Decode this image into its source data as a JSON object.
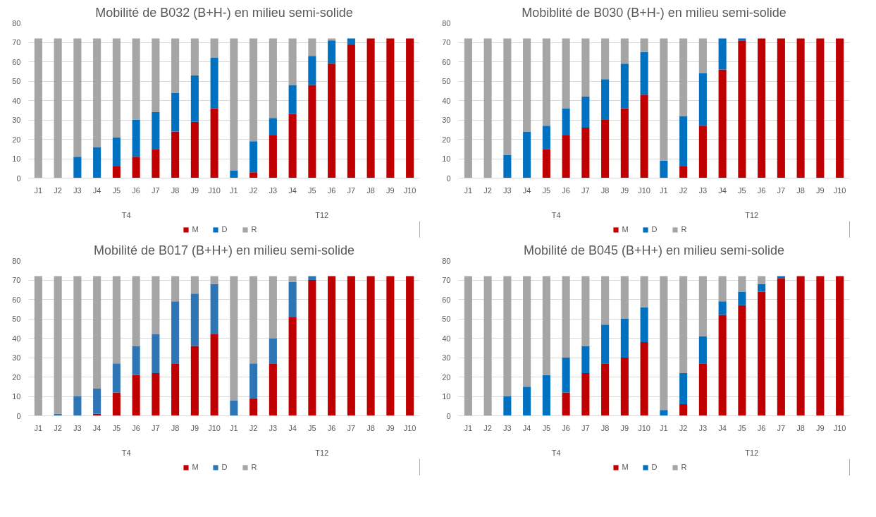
{
  "chart_data": [
    {
      "type": "bar",
      "title": "Mobilité de B032 (B+H-) en milieu semi-solide",
      "stacked": true,
      "categories": [
        "J1",
        "J2",
        "J3",
        "J4",
        "J5",
        "J6",
        "J7",
        "J8",
        "J9",
        "J10",
        "J1",
        "J2",
        "J3",
        "J4",
        "J5",
        "J6",
        "J7",
        "J8",
        "J9",
        "J10"
      ],
      "annotations": [
        "T4",
        "T12"
      ],
      "ylim": [
        0,
        80
      ],
      "yticks": [
        0,
        10,
        20,
        30,
        40,
        50,
        60,
        70,
        80
      ],
      "grid": "y",
      "legend": "bottom",
      "series": [
        {
          "name": "M",
          "color": "#c00000",
          "values": [
            0,
            0,
            0,
            0,
            6,
            11,
            15,
            24,
            29,
            36,
            0,
            3,
            22,
            33,
            48,
            59,
            69,
            72,
            72,
            72
          ]
        },
        {
          "name": "D",
          "color": "#0070c0",
          "values": [
            0,
            0,
            11,
            16,
            15,
            19,
            19,
            20,
            24,
            26,
            4,
            16,
            9,
            15,
            15,
            12,
            3,
            0,
            0,
            0
          ]
        },
        {
          "name": "R",
          "color": "#a5a5a5",
          "values": [
            72,
            72,
            61,
            56,
            51,
            42,
            38,
            28,
            19,
            10,
            68,
            53,
            41,
            24,
            9,
            1,
            0,
            0,
            0,
            0
          ]
        }
      ]
    },
    {
      "type": "bar",
      "title": "Mobiblité de B030 (B+H-) en milieu semi-solide",
      "stacked": true,
      "categories": [
        "J1",
        "J2",
        "J3",
        "J4",
        "J5",
        "J6",
        "J7",
        "J8",
        "J9",
        "J10",
        "J1",
        "J2",
        "J3",
        "J4",
        "J5",
        "J6",
        "J7",
        "J8",
        "J9",
        "J10"
      ],
      "annotations": [
        "T4",
        "T12"
      ],
      "ylim": [
        0,
        80
      ],
      "yticks": [
        0,
        10,
        20,
        30,
        40,
        50,
        60,
        70,
        80
      ],
      "grid": "y",
      "legend": "bottom",
      "series": [
        {
          "name": "M",
          "color": "#c00000",
          "values": [
            0,
            0,
            0,
            0,
            15,
            22,
            26,
            30,
            36,
            43,
            0,
            6,
            27,
            56,
            71,
            72,
            72,
            72,
            72,
            72
          ]
        },
        {
          "name": "D",
          "color": "#0070c0",
          "values": [
            0,
            0,
            12,
            24,
            12,
            14,
            16,
            21,
            23,
            22,
            9,
            26,
            27,
            16,
            1,
            0,
            0,
            0,
            0,
            0
          ]
        },
        {
          "name": "R",
          "color": "#a5a5a5",
          "values": [
            72,
            72,
            60,
            48,
            45,
            36,
            30,
            21,
            13,
            7,
            63,
            40,
            18,
            0,
            0,
            0,
            0,
            0,
            0,
            0
          ]
        }
      ]
    },
    {
      "type": "bar",
      "title": "Mobilité de B017 (B+H+) en milieu semi-solide",
      "stacked": true,
      "categories": [
        "J1",
        "J2",
        "J3",
        "J4",
        "J5",
        "J6",
        "J7",
        "J8",
        "J9",
        "J10",
        "J1",
        "J2",
        "J3",
        "J4",
        "J5",
        "J6",
        "J7",
        "J8",
        "J9",
        "J10"
      ],
      "annotations": [
        "T4",
        "T12"
      ],
      "ylim": [
        0,
        80
      ],
      "yticks": [
        0,
        10,
        20,
        30,
        40,
        50,
        60,
        70,
        80
      ],
      "grid": "y",
      "legend": "bottom",
      "series": [
        {
          "name": "M",
          "color": "#c00000",
          "values": [
            0,
            0,
            0,
            1,
            12,
            21,
            22,
            27,
            36,
            42,
            0,
            9,
            27,
            51,
            70,
            72,
            72,
            72,
            72,
            72
          ]
        },
        {
          "name": "D",
          "color": "#2e75b6",
          "values": [
            0,
            1,
            10,
            13,
            15,
            15,
            20,
            32,
            27,
            26,
            8,
            18,
            13,
            18,
            2,
            0,
            0,
            0,
            0,
            0
          ]
        },
        {
          "name": "R",
          "color": "#a5a5a5",
          "values": [
            72,
            71,
            62,
            58,
            45,
            36,
            30,
            13,
            9,
            4,
            64,
            45,
            32,
            3,
            0,
            0,
            0,
            0,
            0,
            0
          ]
        }
      ]
    },
    {
      "type": "bar",
      "title": "Mobilité de B045 (B+H+) en milieu semi-solide",
      "stacked": true,
      "categories": [
        "J1",
        "J2",
        "J3",
        "J4",
        "J5",
        "J6",
        "J7",
        "J8",
        "J9",
        "J10",
        "J1",
        "J2",
        "J3",
        "J4",
        "J5",
        "J6",
        "J7",
        "J8",
        "J9",
        "J10"
      ],
      "annotations": [
        "T4",
        "T12"
      ],
      "ylim": [
        0,
        80
      ],
      "yticks": [
        0,
        10,
        20,
        30,
        40,
        50,
        60,
        70,
        80
      ],
      "grid": "y",
      "legend": "bottom",
      "series": [
        {
          "name": "M",
          "color": "#c00000",
          "values": [
            0,
            0,
            0,
            0,
            0,
            12,
            22,
            27,
            30,
            38,
            0,
            6,
            27,
            52,
            57,
            64,
            71,
            72,
            72,
            72
          ]
        },
        {
          "name": "D",
          "color": "#0070c0",
          "values": [
            0,
            0,
            10,
            15,
            21,
            18,
            14,
            20,
            20,
            18,
            3,
            16,
            14,
            7,
            7,
            4,
            1,
            0,
            0,
            0
          ]
        },
        {
          "name": "R",
          "color": "#a5a5a5",
          "values": [
            72,
            72,
            62,
            57,
            51,
            42,
            36,
            25,
            22,
            16,
            69,
            50,
            31,
            13,
            8,
            4,
            0,
            0,
            0,
            0
          ]
        }
      ]
    }
  ]
}
